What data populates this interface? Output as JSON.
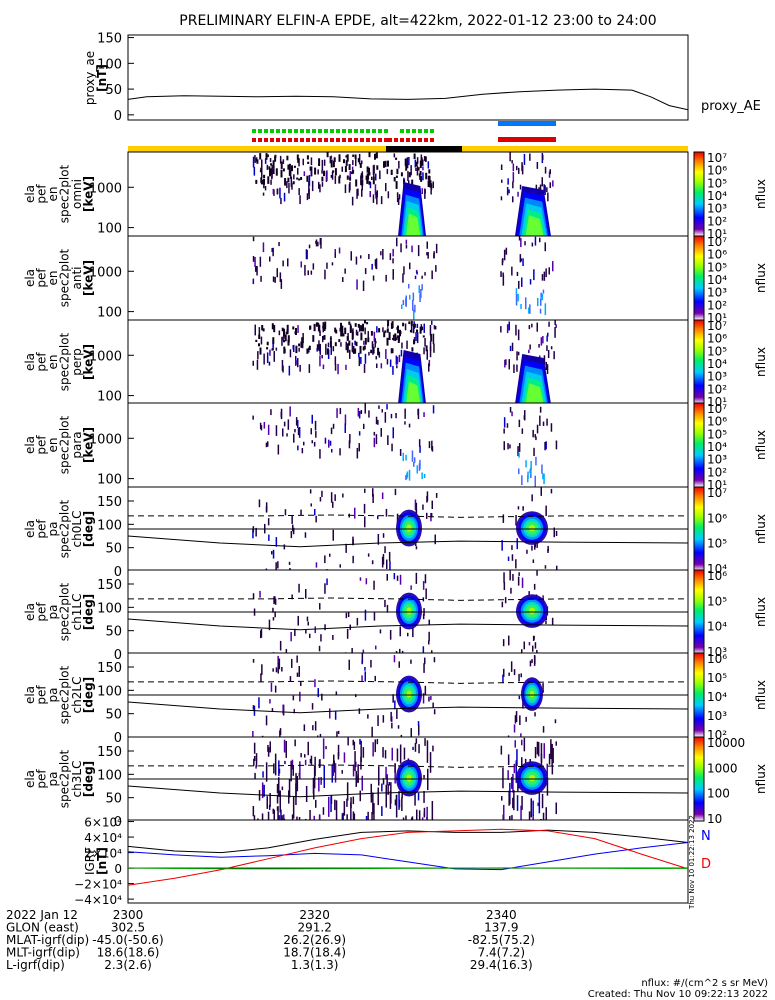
{
  "title": "PRELIMINARY ELFIN-A EPDE, alt=422km, 2022-01-12 23:00 to 24:00",
  "colors": {
    "orbit_yellow": "#ffcc00",
    "orbit_black": "#000000",
    "green_bar": "#00cc00",
    "red_bar": "#dd0000",
    "blue_bar": "#0077ff"
  },
  "chart_data": [
    {
      "id": "proxy_ae",
      "type": "line",
      "ylabel": "proxy_ae\n[nT]",
      "legend": "proxy_AE",
      "yticks": [
        "150",
        "100",
        "50",
        "0"
      ],
      "ylim": [
        -10,
        155
      ],
      "x": [
        2300,
        2302,
        2306,
        2310,
        2314,
        2318,
        2322,
        2326,
        2330,
        2334,
        2338,
        2342,
        2346,
        2350,
        2354,
        2356,
        2358,
        2360
      ],
      "y": [
        30,
        35,
        37,
        36,
        35,
        36,
        35,
        31,
        30,
        32,
        40,
        45,
        48,
        50,
        48,
        35,
        18,
        10
      ]
    },
    {
      "id": "en_omni",
      "type": "heatmap",
      "ylabel": [
        "ela",
        "pef",
        "en",
        "spec2plot",
        "omni",
        "[keV]"
      ],
      "yticks": [
        "1000",
        "100"
      ],
      "zunit": "nflux",
      "zrange": "10^1 - 10^7"
    },
    {
      "id": "en_anti",
      "type": "heatmap",
      "ylabel": [
        "ela",
        "pef",
        "en",
        "spec2plot",
        "anti",
        "[keV]"
      ],
      "yticks": [
        "1000",
        "100"
      ],
      "zunit": "nflux",
      "zrange": "10^1 - 10^7"
    },
    {
      "id": "en_perp",
      "type": "heatmap",
      "ylabel": [
        "ela",
        "pef",
        "en",
        "spec2plot",
        "perp",
        "[keV]"
      ],
      "yticks": [
        "1000",
        "100"
      ],
      "zunit": "nflux",
      "zrange": "10^1 - 10^7"
    },
    {
      "id": "en_para",
      "type": "heatmap",
      "ylabel": [
        "ela",
        "pef",
        "en",
        "spec2plot",
        "para",
        "[keV]"
      ],
      "yticks": [
        "1000",
        "100"
      ],
      "zunit": "nflux",
      "zrange": "10^1 - 10^7"
    },
    {
      "id": "pa_ch0LC",
      "type": "heatmap",
      "ylabel": [
        "ela",
        "pef",
        "pa",
        "spec2plot",
        "ch0LC",
        "[deg]"
      ],
      "yticks": [
        "150",
        "100",
        "50",
        "0"
      ],
      "zunit": "nflux",
      "zrange": "10^4 - 10^7"
    },
    {
      "id": "pa_ch1LC",
      "type": "heatmap",
      "ylabel": [
        "ela",
        "pef",
        "pa",
        "spec2plot",
        "ch1LC",
        "[deg]"
      ],
      "yticks": [
        "150",
        "100",
        "50",
        "0"
      ],
      "zunit": "nflux",
      "zrange": "10^3 - 10^6"
    },
    {
      "id": "pa_ch2LC",
      "type": "heatmap",
      "ylabel": [
        "ela",
        "pef",
        "pa",
        "spec2plot",
        "ch2LC",
        "[deg]"
      ],
      "yticks": [
        "150",
        "100",
        "50",
        "0"
      ],
      "zunit": "nflux",
      "zrange": "10^2 - 10^6"
    },
    {
      "id": "pa_ch3LC",
      "type": "heatmap",
      "ylabel": [
        "ela",
        "pef",
        "pa",
        "spec2plot",
        "ch3LC",
        "[deg]"
      ],
      "yticks": [
        "150",
        "100",
        "50",
        "0"
      ],
      "zunit": "nflux",
      "zrange": "10 - 10000"
    },
    {
      "id": "igrf",
      "type": "line",
      "ylabel": [
        "IGRF",
        "[nT]"
      ],
      "yticks": [
        "6×10⁴",
        "4×10⁴",
        "2×10⁴",
        "0",
        "−2×10⁴",
        "−4×10⁴"
      ],
      "ylim": [
        -45000,
        62000
      ],
      "legend": [
        "N",
        "D"
      ],
      "x": [
        2300,
        2305,
        2310,
        2315,
        2320,
        2325,
        2330,
        2335,
        2340,
        2345,
        2350,
        2355,
        2360
      ],
      "series": [
        {
          "name": "total",
          "color": "#000000",
          "values": [
            28000,
            22000,
            20000,
            26000,
            37000,
            46000,
            48000,
            46000,
            46000,
            49000,
            46000,
            40000,
            33000
          ]
        },
        {
          "name": "N",
          "color": "#0000ee",
          "values": [
            21000,
            17000,
            14000,
            16000,
            19000,
            17000,
            8000,
            -1000,
            -2000,
            8000,
            18000,
            26000,
            33000
          ]
        },
        {
          "name": "D",
          "color": "#ee0000",
          "values": [
            -22000,
            -13000,
            -2000,
            12000,
            26000,
            38000,
            46000,
            48000,
            50000,
            48000,
            38000,
            18000,
            -1000
          ]
        },
        {
          "name": "E",
          "color": "#00aa00",
          "values": [
            200,
            -500,
            -900,
            -1000,
            -900,
            -600,
            -300,
            0,
            200,
            0,
            -300,
            -500,
            -400
          ]
        }
      ],
      "side_note": "Thu Nov 10 01:22:13 2022"
    }
  ],
  "ephemeris": {
    "rows": [
      {
        "label": "2022 Jan 12",
        "values": [
          "2300",
          "2320",
          "2340"
        ]
      },
      {
        "label": "GLON (east)",
        "values": [
          "302.5",
          "291.2",
          "137.9"
        ]
      },
      {
        "label": "MLAT-igrf(dip)",
        "values": [
          "-45.0(-50.6)",
          "26.2(26.9)",
          "-82.5(75.2)"
        ]
      },
      {
        "label": "MLT-igrf(dip)",
        "values": [
          "18.6(18.6)",
          "18.7(18.4)",
          "7.4(7.2)"
        ]
      },
      {
        "label": "L-igrf(dip)",
        "values": [
          "2.3(2.6)",
          "1.3(1.3)",
          "29.4(16.3)"
        ]
      }
    ]
  },
  "footer": {
    "units": "nflux: #/(cm^2 s sr MeV)",
    "created": "Created: Thu Nov 10 09:22:13 2022"
  }
}
